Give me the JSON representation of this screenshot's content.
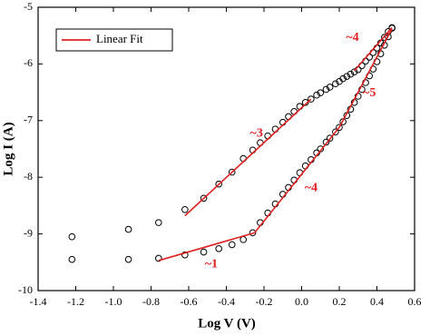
{
  "chart_data": {
    "type": "scatter",
    "xlabel": "Log V (V)",
    "ylabel": "Log I (A)",
    "xlim": [
      -1.4,
      0.6
    ],
    "xticks": [
      -1.4,
      -1.2,
      {
        "value": -1,
        "label": "-1.0"
      },
      -0.8,
      -0.6,
      -0.4,
      -0.2,
      {
        "value": 0,
        "label": "0.0"
      },
      0.2,
      0.4,
      0.6
    ],
    "ylim": [
      -10,
      -5
    ],
    "yticks": [
      -10,
      -9,
      -8,
      -7,
      -6,
      -5
    ],
    "marker_color": "#000000",
    "series": [
      {
        "x": [
          -1.22,
          -0.92,
          -0.76,
          -0.62,
          -0.52,
          -0.44,
          -0.37,
          -0.31,
          -0.26,
          -0.22,
          -0.18,
          -0.14,
          -0.1,
          -0.07,
          -0.04,
          -0.01,
          0.02,
          0.05,
          0.08,
          0.1,
          0.13,
          0.15,
          0.18,
          0.2,
          0.22,
          0.24,
          0.26,
          0.28,
          0.3,
          0.32,
          0.34,
          0.36,
          0.38,
          0.4,
          0.42,
          0.44,
          0.46,
          0.48
        ],
        "values": [
          -9.05,
          -8.92,
          -8.8,
          -8.57,
          -8.37,
          -8.12,
          -7.91,
          -7.67,
          -7.52,
          -7.39,
          -7.27,
          -7.15,
          -7.03,
          -6.93,
          -6.84,
          -6.75,
          -6.68,
          -6.62,
          -6.55,
          -6.51,
          -6.45,
          -6.41,
          -6.35,
          -6.31,
          -6.26,
          -6.22,
          -6.18,
          -6.14,
          -6.1,
          -6.03,
          -5.95,
          -5.88,
          -5.8,
          -5.72,
          -5.63,
          -5.53,
          -5.43,
          -5.36
        ]
      },
      {
        "x": [
          -1.22,
          -0.92,
          -0.76,
          -0.62,
          -0.52,
          -0.44,
          -0.37,
          -0.31,
          -0.26,
          -0.22,
          -0.18,
          -0.14,
          -0.1,
          -0.07,
          -0.04,
          -0.01,
          0.02,
          0.05,
          0.08,
          0.1,
          0.13,
          0.15,
          0.18,
          0.2,
          0.22,
          0.24,
          0.26,
          0.28,
          0.3,
          0.32,
          0.34,
          0.36,
          0.38,
          0.4,
          0.42,
          0.44,
          0.46,
          0.48
        ],
        "values": [
          -9.45,
          -9.45,
          -9.43,
          -9.37,
          -9.32,
          -9.26,
          -9.19,
          -9.1,
          -8.98,
          -8.8,
          -8.63,
          -8.47,
          -8.3,
          -8.18,
          -8.05,
          -7.92,
          -7.8,
          -7.69,
          -7.57,
          -7.5,
          -7.38,
          -7.31,
          -7.2,
          -7.12,
          -7.02,
          -6.91,
          -6.8,
          -6.68,
          -6.57,
          -6.45,
          -6.33,
          -6.21,
          -6.09,
          -5.96,
          -5.82,
          -5.67,
          -5.52,
          -5.37
        ]
      }
    ],
    "fits": {
      "name": "Linear Fit",
      "color": "#e02020",
      "lines": [
        {
          "x": [
            -0.76,
            -0.25
          ],
          "values": [
            -9.47,
            -8.98
          ]
        },
        {
          "x": [
            -0.25,
            0.2
          ],
          "values": [
            -8.98,
            -7.12
          ]
        },
        {
          "x": [
            0.2,
            0.48
          ],
          "values": [
            -7.12,
            -5.38
          ]
        },
        {
          "x": [
            -0.62,
            0.05
          ],
          "values": [
            -8.68,
            -6.62
          ]
        },
        {
          "x": [
            0.28,
            0.48
          ],
          "values": [
            -6.12,
            -5.36
          ]
        }
      ]
    },
    "annotations": [
      {
        "text": "~1",
        "x": -0.48,
        "y": -9.54
      },
      {
        "text": "~4",
        "x": 0.05,
        "y": -8.19
      },
      {
        "text": "~5",
        "x": 0.36,
        "y": -6.52
      },
      {
        "text": "~3",
        "x": -0.24,
        "y": -7.23
      },
      {
        "text": "~4",
        "x": 0.27,
        "y": -5.54
      }
    ],
    "legend": "upper left"
  }
}
